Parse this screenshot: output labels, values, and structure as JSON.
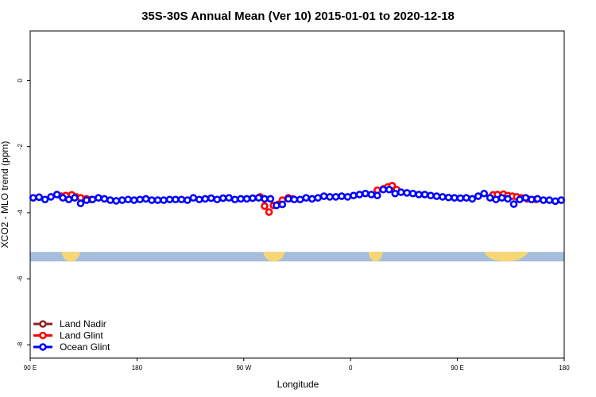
{
  "chart_data": {
    "type": "scatter",
    "title": "35S-30S Annual Mean (Ver 10)   2015-01-01 to 2020-12-18",
    "xlabel": "Longitude",
    "ylabel": "XCO2 - MLO trend (ppm)",
    "xlim": [
      90,
      450
    ],
    "ylim": [
      -8.4,
      1.5
    ],
    "x_ticks": [
      {
        "value": 90,
        "label": "90 E"
      },
      {
        "value": 162,
        "label": "180"
      },
      {
        "value": 234,
        "label": "90 W"
      },
      {
        "value": 306,
        "label": "0"
      },
      {
        "value": 378,
        "label": "90 E"
      },
      {
        "value": 450,
        "label": "180"
      }
    ],
    "y_ticks": [
      {
        "value": 0,
        "label": "0"
      },
      {
        "value": -2,
        "label": "-2"
      },
      {
        "value": -4,
        "label": "-4"
      },
      {
        "value": -6,
        "label": "-6"
      },
      {
        "value": -8,
        "label": "-8"
      }
    ],
    "grid": false,
    "legend_position": "bottom-left",
    "map_strip": {
      "y_center": -5.33,
      "ocean_color": "#a6bddb",
      "land_color": "#f7d774",
      "land_ranges": [
        [
          111,
          124
        ],
        [
          247,
          262
        ],
        [
          318,
          328
        ],
        [
          396,
          426
        ]
      ]
    },
    "series": [
      {
        "name": "Land Nadir",
        "color": "#8b2323",
        "x": [],
        "y": []
      },
      {
        "name": "Land Glint",
        "color": "#ff0000",
        "x": [
          111,
          114,
          118,
          121,
          124,
          128,
          131,
          245,
          248,
          251,
          254,
          257,
          260,
          264,
          267,
          324,
          328,
          331,
          334,
          337,
          402,
          405,
          409,
          412,
          415,
          418,
          421,
          425,
          428,
          431
        ],
        "y": [
          -3.5,
          -3.48,
          -3.46,
          -3.52,
          -3.55,
          -3.58,
          -3.6,
          -3.52,
          -3.8,
          -3.98,
          -3.78,
          -3.75,
          -3.62,
          -3.55,
          -3.58,
          -3.32,
          -3.28,
          -3.22,
          -3.18,
          -3.3,
          -3.46,
          -3.45,
          -3.44,
          -3.48,
          -3.5,
          -3.52,
          -3.55,
          -3.58,
          -3.6,
          -3.6
        ]
      },
      {
        "name": "Ocean Glint",
        "color": "#0000ff",
        "x": [
          92,
          96,
          100,
          104,
          108,
          112,
          116,
          120,
          124,
          128,
          132,
          136,
          140,
          144,
          148,
          152,
          156,
          160,
          164,
          168,
          172,
          176,
          180,
          184,
          188,
          192,
          196,
          200,
          204,
          208,
          212,
          216,
          220,
          224,
          228,
          232,
          236,
          240,
          244,
          248,
          252,
          256,
          260,
          264,
          268,
          272,
          276,
          280,
          284,
          288,
          292,
          296,
          300,
          304,
          308,
          312,
          316,
          320,
          324,
          328,
          332,
          336,
          340,
          344,
          348,
          352,
          356,
          360,
          364,
          368,
          372,
          376,
          380,
          384,
          388,
          392,
          396,
          400,
          404,
          408,
          412,
          416,
          420,
          424,
          428,
          432,
          436,
          440,
          444,
          448
        ],
        "y": [
          -3.55,
          -3.53,
          -3.6,
          -3.52,
          -3.45,
          -3.55,
          -3.6,
          -3.55,
          -3.72,
          -3.62,
          -3.6,
          -3.55,
          -3.58,
          -3.62,
          -3.64,
          -3.62,
          -3.6,
          -3.62,
          -3.6,
          -3.58,
          -3.62,
          -3.62,
          -3.62,
          -3.6,
          -3.6,
          -3.6,
          -3.62,
          -3.55,
          -3.6,
          -3.58,
          -3.56,
          -3.6,
          -3.56,
          -3.55,
          -3.6,
          -3.58,
          -3.58,
          -3.56,
          -3.55,
          -3.58,
          -3.58,
          -3.78,
          -3.75,
          -3.58,
          -3.6,
          -3.6,
          -3.55,
          -3.58,
          -3.55,
          -3.5,
          -3.52,
          -3.52,
          -3.5,
          -3.52,
          -3.48,
          -3.45,
          -3.42,
          -3.45,
          -3.48,
          -3.3,
          -3.3,
          -3.42,
          -3.38,
          -3.4,
          -3.42,
          -3.45,
          -3.45,
          -3.48,
          -3.5,
          -3.52,
          -3.54,
          -3.55,
          -3.56,
          -3.55,
          -3.58,
          -3.5,
          -3.42,
          -3.55,
          -3.6,
          -3.55,
          -3.58,
          -3.74,
          -3.6,
          -3.55,
          -3.6,
          -3.58,
          -3.62,
          -3.62,
          -3.65,
          -3.62
        ]
      }
    ]
  }
}
